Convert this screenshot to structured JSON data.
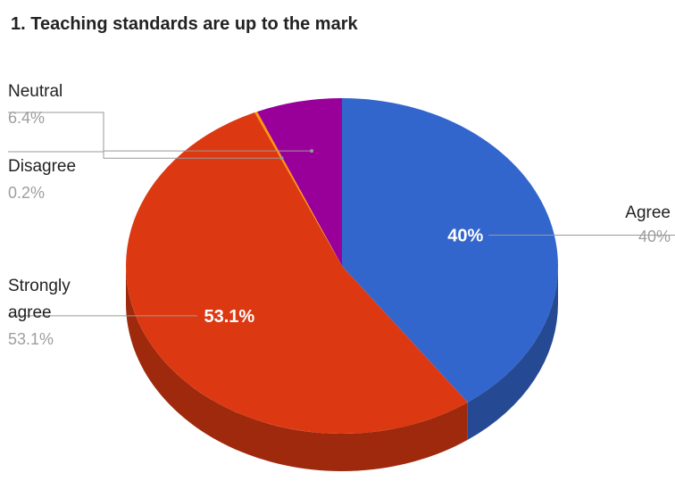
{
  "chart_data": {
    "type": "pie",
    "style": "3d",
    "title": "1. Teaching standards are up to the mark",
    "slices": [
      {
        "label": "Agree",
        "value": 40,
        "percent_label": "40%",
        "color": "#3366cc",
        "show_inside": true
      },
      {
        "label": "Strongly agree",
        "value": 53.1,
        "percent_label": "53.1%",
        "color": "#dc3912",
        "show_inside": true
      },
      {
        "label": "Disagree",
        "value": 0.2,
        "percent_label": "0.2%",
        "color": "#ff9900",
        "show_inside": false
      },
      {
        "label": "Neutral",
        "value": 6.4,
        "percent_label": "6.4%",
        "color": "#990099",
        "show_inside": false
      }
    ],
    "legend": "labeled callouts"
  }
}
